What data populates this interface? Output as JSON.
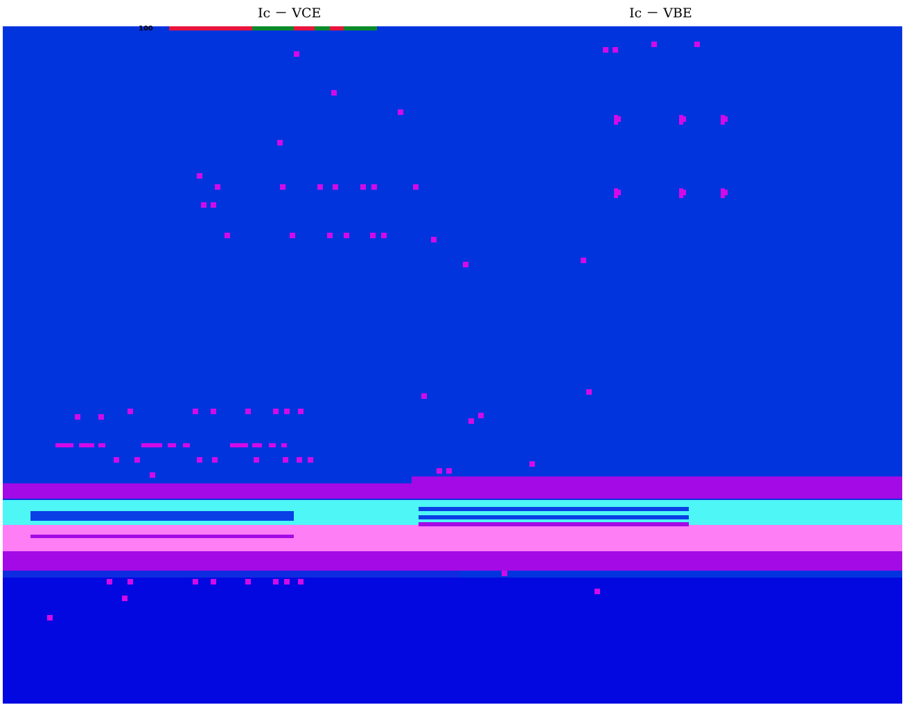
{
  "titles": {
    "left": "Ic － VCE",
    "right": "Ic － VBE"
  },
  "top_tick": "100",
  "colors": {
    "background": "#0234de",
    "band_purple": "#a40ae6",
    "band_cyan": "#4ef6f6",
    "band_pink": "#fe7ef6",
    "mark": "#d20ae8",
    "navy": "#0408e0",
    "red": "#e8143c",
    "green": "#0a8a2a"
  },
  "chart_data": [
    {
      "type": "line",
      "title": "Ic － VCE",
      "y_tick_labels": [
        "100"
      ]
    },
    {
      "type": "line",
      "title": "Ic － VBE"
    }
  ]
}
